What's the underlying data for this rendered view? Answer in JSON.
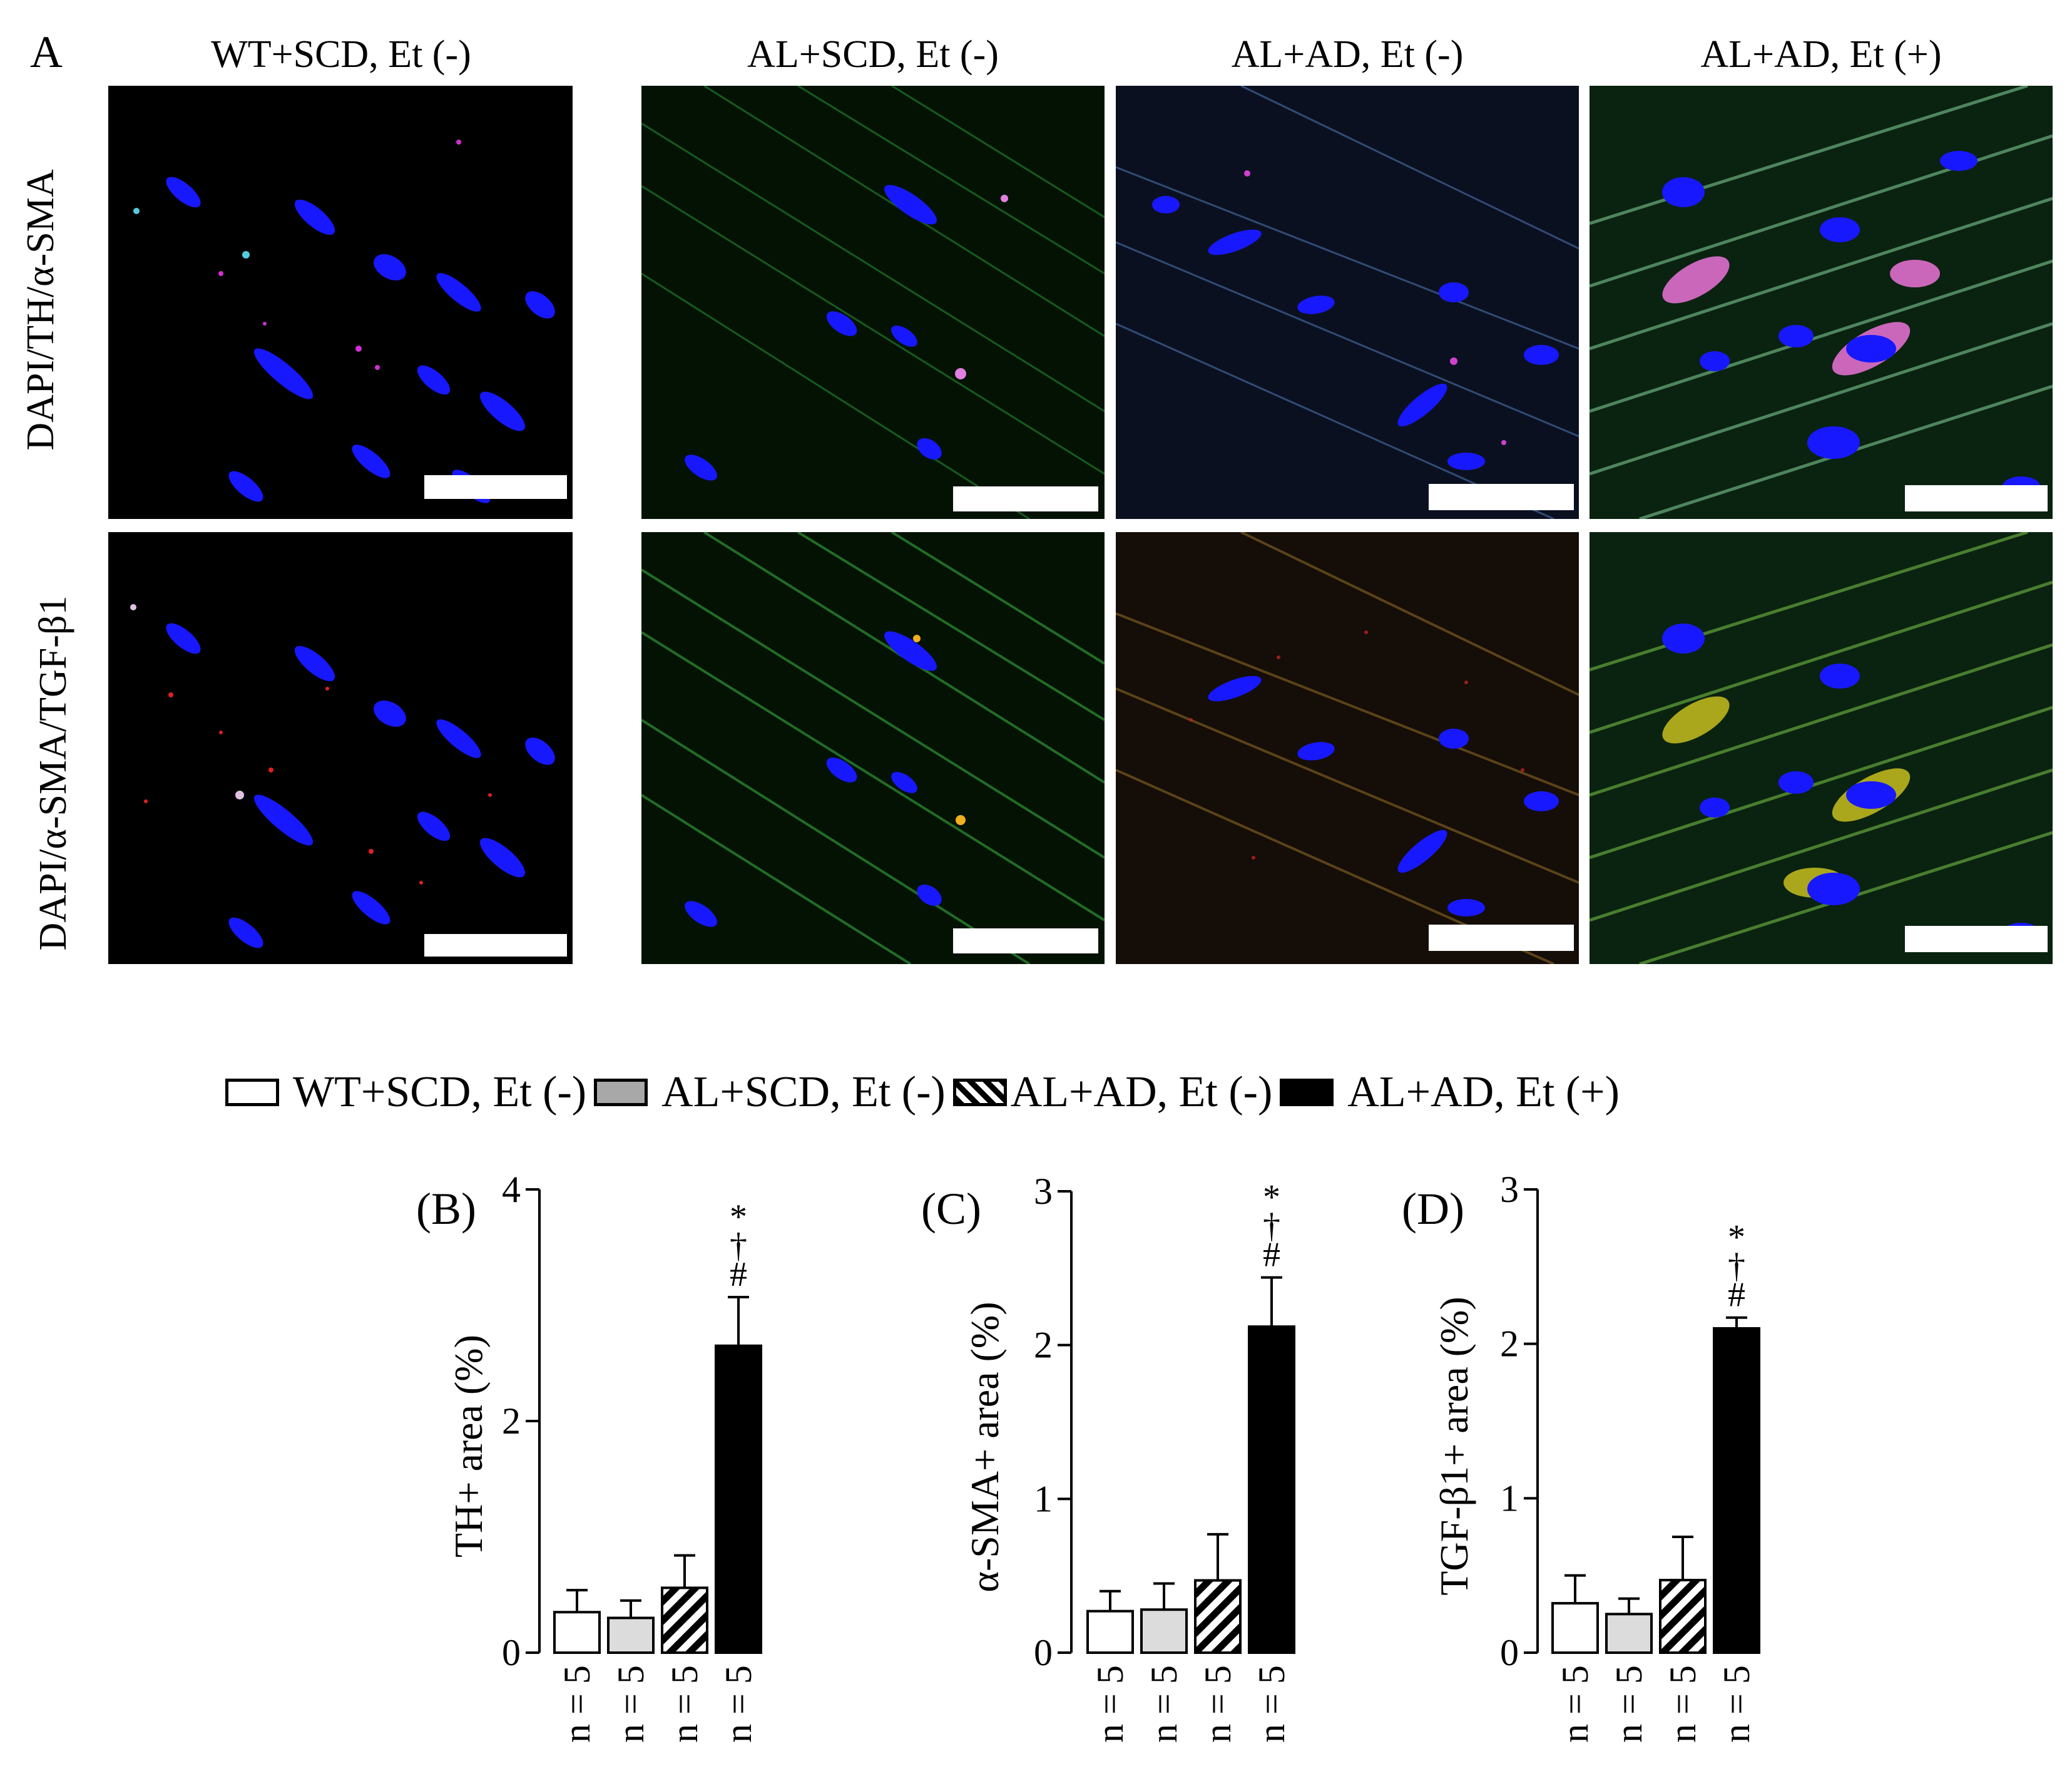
{
  "panel_a": {
    "letter": "A",
    "columns": [
      "WT+SCD, Et (-)",
      "AL+SCD, Et (-)",
      "AL+AD, Et (-)",
      "AL+AD, Et (+)"
    ],
    "rows": [
      "DAPI/TH/α-SMA",
      "DAPI/α-SMA/TGF-β1"
    ]
  },
  "legend": {
    "items": [
      {
        "label": "WT+SCD, Et (-)",
        "fill": "#ffffff",
        "pattern": "none"
      },
      {
        "label": "AL+SCD, Et (-)",
        "fill": "#a8a8a8",
        "pattern": "none"
      },
      {
        "label": "AL+AD, Et (-)",
        "fill": "#ffffff",
        "pattern": "diagonal-hatch"
      },
      {
        "label": "AL+AD, Et (+)",
        "fill": "#000000",
        "pattern": "none"
      }
    ]
  },
  "chart_data": [
    {
      "type": "bar",
      "panel": "(B)",
      "ylabel": "TH+ area (%)",
      "ylim": [
        0,
        4
      ],
      "yticks": [
        0,
        2,
        4
      ],
      "categories": [
        "n = 5",
        "n = 5",
        "n = 5",
        "n = 5"
      ],
      "values": [
        0.35,
        0.3,
        0.56,
        2.65
      ],
      "errors": [
        0.19,
        0.15,
        0.28,
        0.42
      ],
      "colors": [
        "#ffffff",
        "#dcdcdc",
        "hatch",
        "#000000"
      ],
      "annotation": [
        "*",
        "†",
        "#"
      ]
    },
    {
      "type": "bar",
      "panel": "(C)",
      "ylabel": "α-SMA+ area (%)",
      "ylim": [
        0,
        3
      ],
      "yticks": [
        0,
        1,
        2,
        3
      ],
      "categories": [
        "n = 5",
        "n = 5",
        "n = 5",
        "n = 5"
      ],
      "values": [
        0.27,
        0.28,
        0.47,
        2.12
      ],
      "errors": [
        0.13,
        0.17,
        0.3,
        0.32
      ],
      "colors": [
        "#ffffff",
        "#dcdcdc",
        "hatch",
        "#000000"
      ],
      "annotation": [
        "*",
        "†",
        "#"
      ]
    },
    {
      "type": "bar",
      "panel": "(D)",
      "ylabel": "TGF-β1+ area (%)",
      "ylim": [
        0,
        3
      ],
      "yticks": [
        0,
        1,
        2,
        3
      ],
      "categories": [
        "n = 5",
        "n = 5",
        "n = 5",
        "n = 5"
      ],
      "values": [
        0.32,
        0.25,
        0.47,
        2.1
      ],
      "errors": [
        0.18,
        0.1,
        0.28,
        0.07
      ],
      "colors": [
        "#ffffff",
        "#dcdcdc",
        "hatch",
        "#000000"
      ],
      "annotation": [
        "*",
        "†",
        "#"
      ]
    }
  ]
}
